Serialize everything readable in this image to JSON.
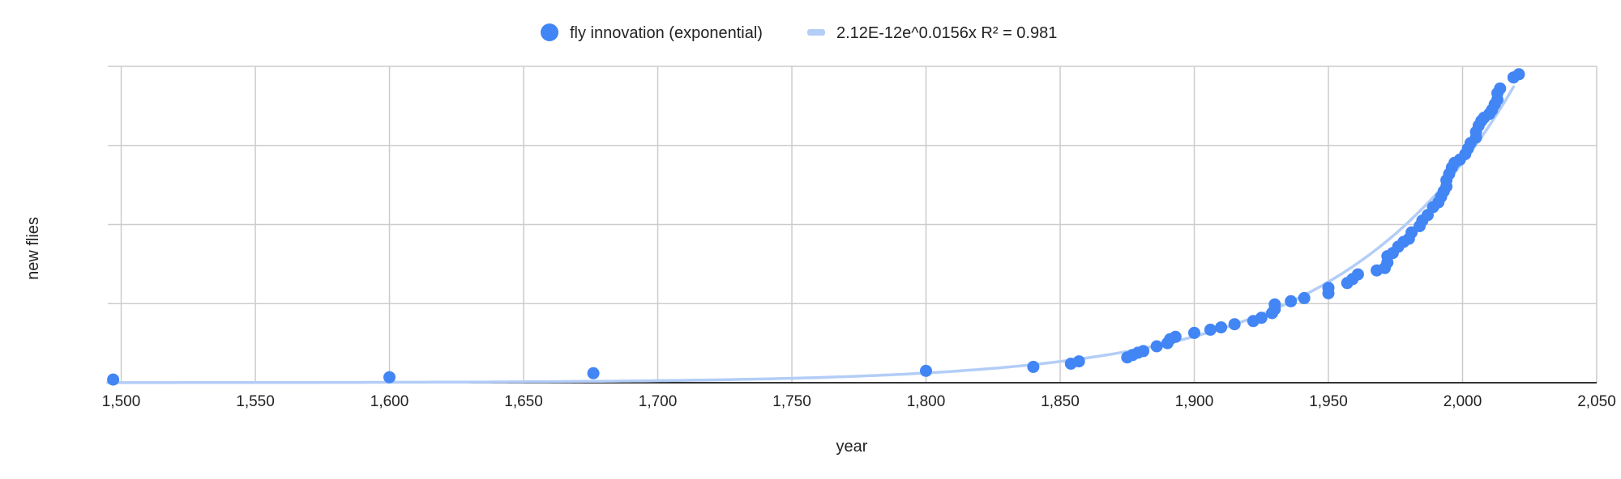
{
  "chart_data": {
    "type": "scatter",
    "title": "",
    "xlabel": "year",
    "ylabel": "new flies",
    "xlim": [
      1495,
      2050
    ],
    "ylim": [
      0,
      4
    ],
    "x_ticks": [
      1500,
      1550,
      1600,
      1650,
      1700,
      1750,
      1800,
      1850,
      1900,
      1950,
      2000,
      2050
    ],
    "x_tick_labels": [
      "1,500",
      "1,550",
      "1,600",
      "1,650",
      "1,700",
      "1,750",
      "1,800",
      "1,850",
      "1,900",
      "1,950",
      "2,000",
      "2,050"
    ],
    "y_gridlines": [
      0,
      1,
      2,
      3,
      4
    ],
    "y_tick_labels_shown": false,
    "grid": true,
    "legend_position": "top",
    "colors": {
      "points": "#4285f4",
      "trendline": "#b3cdf7",
      "grid": "#cccccc",
      "axis": "#333333"
    },
    "series": [
      {
        "name": "fly innovation (exponential)",
        "marker": "circle",
        "points": [
          [
            1497,
            0.04
          ],
          [
            1600,
            0.07
          ],
          [
            1676,
            0.12
          ],
          [
            1800,
            0.15
          ],
          [
            1840,
            0.2
          ],
          [
            1854,
            0.24
          ],
          [
            1857,
            0.27
          ],
          [
            1875,
            0.32
          ],
          [
            1877,
            0.35
          ],
          [
            1879,
            0.38
          ],
          [
            1881,
            0.4
          ],
          [
            1886,
            0.46
          ],
          [
            1890,
            0.5
          ],
          [
            1891,
            0.55
          ],
          [
            1893,
            0.58
          ],
          [
            1900,
            0.63
          ],
          [
            1906,
            0.67
          ],
          [
            1910,
            0.7
          ],
          [
            1915,
            0.74
          ],
          [
            1922,
            0.78
          ],
          [
            1925,
            0.82
          ],
          [
            1929,
            0.88
          ],
          [
            1930,
            0.93
          ],
          [
            1930,
            0.99
          ],
          [
            1936,
            1.03
          ],
          [
            1941,
            1.07
          ],
          [
            1950,
            1.13
          ],
          [
            1950,
            1.2
          ],
          [
            1957,
            1.26
          ],
          [
            1959,
            1.31
          ],
          [
            1961,
            1.37
          ],
          [
            1968,
            1.42
          ],
          [
            1971,
            1.45
          ],
          [
            1972,
            1.52
          ],
          [
            1972,
            1.6
          ],
          [
            1974,
            1.64
          ],
          [
            1976,
            1.72
          ],
          [
            1978,
            1.78
          ],
          [
            1980,
            1.82
          ],
          [
            1981,
            1.9
          ],
          [
            1984,
            1.98
          ],
          [
            1985,
            2.05
          ],
          [
            1987,
            2.12
          ],
          [
            1989,
            2.22
          ],
          [
            1991,
            2.28
          ],
          [
            1992,
            2.35
          ],
          [
            1993,
            2.42
          ],
          [
            1994,
            2.48
          ],
          [
            1994,
            2.56
          ],
          [
            1995,
            2.64
          ],
          [
            1996,
            2.72
          ],
          [
            1997,
            2.78
          ],
          [
            1999,
            2.82
          ],
          [
            2001,
            2.89
          ],
          [
            2002,
            2.96
          ],
          [
            2003,
            3.03
          ],
          [
            2005,
            3.1
          ],
          [
            2005,
            3.17
          ],
          [
            2006,
            3.25
          ],
          [
            2007,
            3.31
          ],
          [
            2008,
            3.35
          ],
          [
            2010,
            3.4
          ],
          [
            2011,
            3.45
          ],
          [
            2012,
            3.52
          ],
          [
            2013,
            3.58
          ],
          [
            2013,
            3.66
          ],
          [
            2014,
            3.72
          ],
          [
            2019,
            3.86
          ],
          [
            2021,
            3.9
          ]
        ]
      },
      {
        "name": "2.12E-12e^0.0156x R² = 0.981",
        "type": "trendline",
        "model": "exponential",
        "coefficient": 2.12e-12,
        "exponent": 0.0156,
        "r_squared": 0.981,
        "x_range": [
          1495,
          2020
        ]
      }
    ]
  }
}
